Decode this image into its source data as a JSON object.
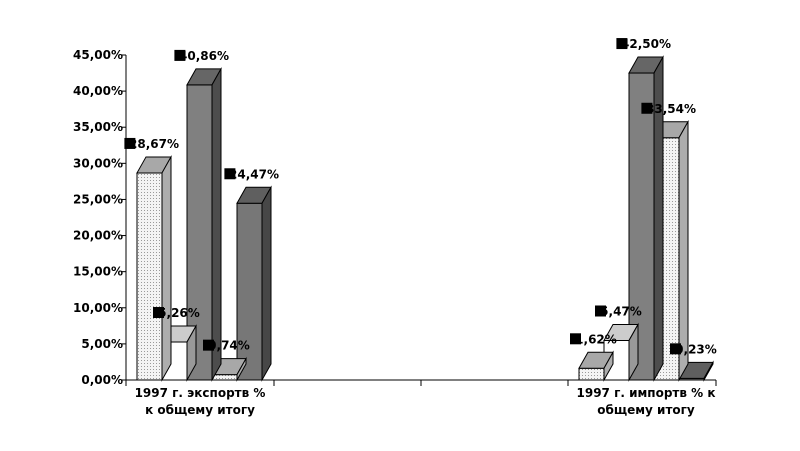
{
  "chart_data": {
    "type": "bar",
    "categories": [
      [
        "1997 г. экспортв %",
        "к общему итогу"
      ],
      [
        "1997 г. импортв % к",
        "общему итогу"
      ]
    ],
    "series": [
      {
        "values": [
          28.67,
          1.62
        ],
        "labels": [
          "28,67%",
          "1,62%"
        ],
        "color": "#e8e8e8",
        "pattern": "dots"
      },
      {
        "values": [
          5.26,
          5.47
        ],
        "labels": [
          "5,26%",
          "5,47%"
        ],
        "color": "#ffffff"
      },
      {
        "values": [
          40.86,
          42.5
        ],
        "labels": [
          "40,86%",
          "42,50%"
        ],
        "color": "#808080"
      },
      {
        "values": [
          0.74,
          33.54
        ],
        "labels": [
          "0,74%",
          "33,54%"
        ],
        "color": "#f0f0f0",
        "pattern": "dots"
      },
      {
        "values": [
          24.47,
          0.23
        ],
        "labels": [
          "24,47%",
          "0,23%"
        ],
        "color": "#777777"
      }
    ],
    "ylim": [
      0,
      45
    ],
    "yticks": [
      "0,00%",
      "5,00%",
      "10,00%",
      "15,00%",
      "20,00%",
      "25,00%",
      "30,00%",
      "35,00%",
      "40,00%",
      "45,00%"
    ],
    "ytick_values": [
      0,
      5,
      10,
      15,
      20,
      25,
      30,
      35,
      40,
      45
    ],
    "style": "3d-columns",
    "grid": false,
    "legend": "none"
  }
}
